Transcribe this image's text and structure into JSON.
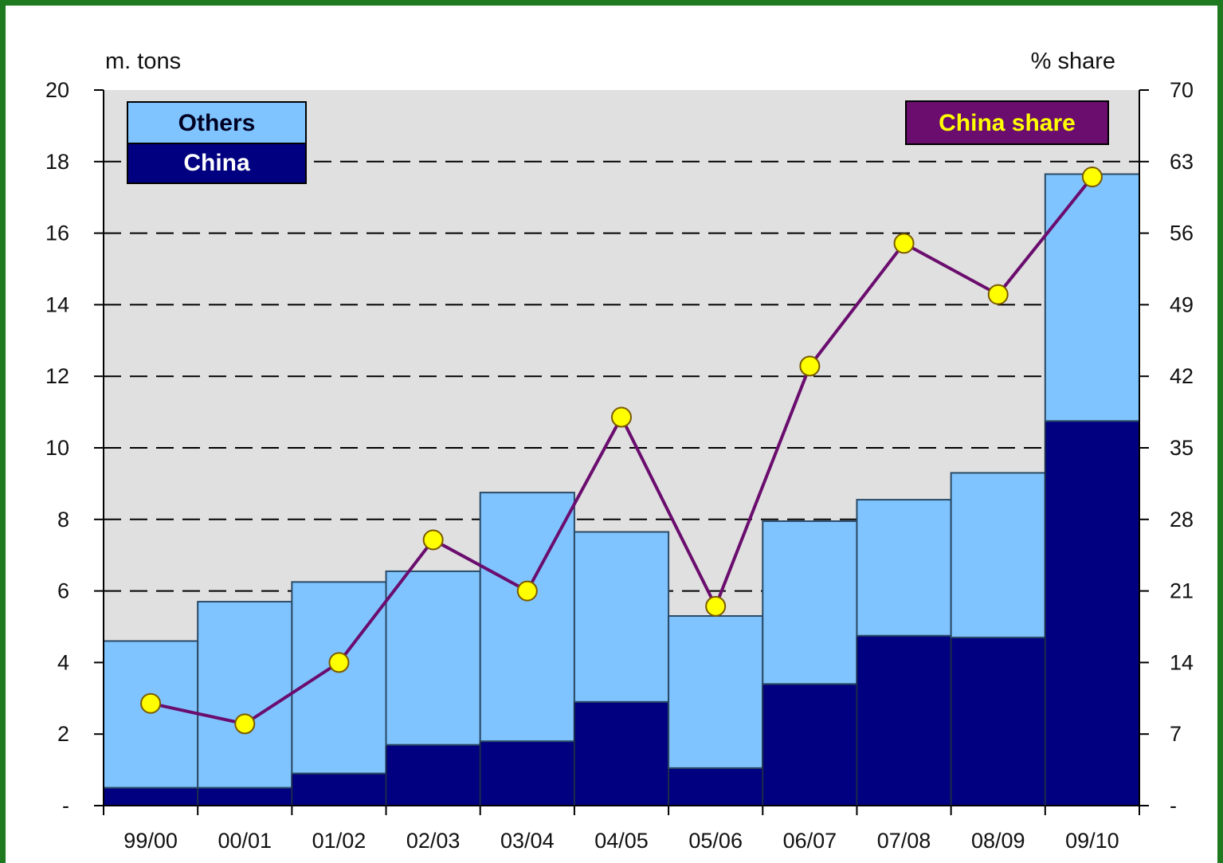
{
  "chart_data": {
    "type": "bar",
    "stacked": true,
    "categories": [
      "99/00",
      "00/01",
      "01/02",
      "02/03",
      "03/04",
      "04/05",
      "05/06",
      "06/07",
      "07/08",
      "08/09",
      "09/10"
    ],
    "series": [
      {
        "name": "China",
        "axis": "left",
        "values": [
          0.5,
          0.5,
          0.9,
          1.7,
          1.8,
          2.9,
          1.05,
          3.4,
          4.75,
          4.7,
          10.75
        ],
        "color": "#000080"
      },
      {
        "name": "Others",
        "axis": "left",
        "values": [
          4.1,
          5.2,
          5.35,
          4.85,
          6.95,
          4.75,
          4.25,
          4.55,
          3.8,
          4.6,
          6.9
        ],
        "color": "#80c4ff"
      },
      {
        "name": "China share",
        "type": "line",
        "axis": "right",
        "values": [
          10,
          8,
          14,
          26,
          21,
          38,
          19.5,
          43,
          55,
          50,
          61.5
        ],
        "line_color": "#6a0d6e",
        "marker_color": "#ffff00"
      }
    ],
    "left_axis": {
      "label": "m. tons",
      "ylim": [
        0,
        20
      ],
      "ticks": [
        0,
        2,
        4,
        6,
        8,
        10,
        12,
        14,
        16,
        18,
        20
      ],
      "tick_labels": [
        "-",
        "2",
        "4",
        "6",
        "8",
        "10",
        "12",
        "14",
        "16",
        "18",
        "20"
      ]
    },
    "right_axis": {
      "label": "% share",
      "ylim": [
        0,
        70
      ],
      "ticks": [
        0,
        7,
        14,
        21,
        28,
        35,
        42,
        49,
        56,
        63,
        70
      ],
      "tick_labels": [
        "-",
        "7",
        "14",
        "21",
        "28",
        "35",
        "42",
        "49",
        "56",
        "63",
        "70"
      ]
    },
    "legend": [
      {
        "label": "Others",
        "placement": "top-left"
      },
      {
        "label": "China",
        "placement": "top-left"
      },
      {
        "label": "China share",
        "placement": "top-right"
      }
    ],
    "grid": "horizontal dashed",
    "plot_background": "#e0e0e0"
  }
}
